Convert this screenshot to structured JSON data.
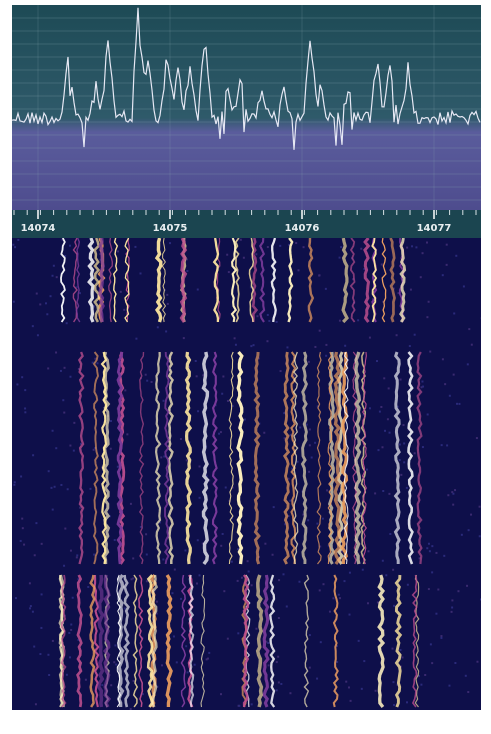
{
  "frequency_axis": {
    "labels": [
      "14074",
      "14075",
      "14076",
      "14077"
    ]
  }
}
